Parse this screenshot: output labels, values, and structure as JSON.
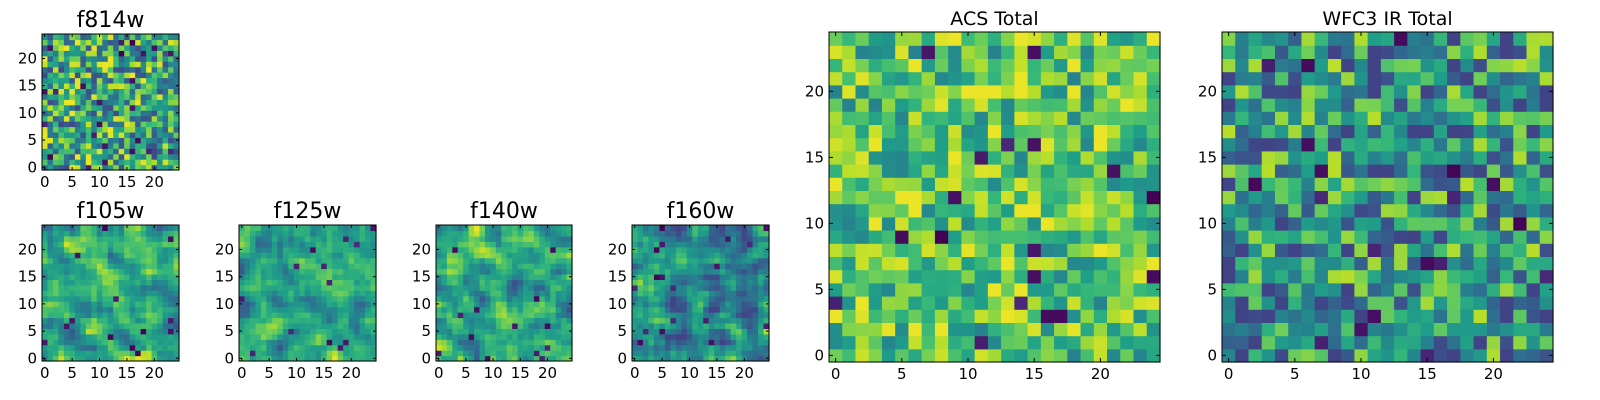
{
  "chart_data": [
    {
      "type": "heatmap",
      "title": "f814w",
      "size": 25,
      "colormap": "viridis",
      "xticks": [
        "0",
        "5",
        "10",
        "15",
        "20"
      ],
      "yticks": [
        "0",
        "5",
        "10",
        "15",
        "20"
      ],
      "values": []
    },
    {
      "type": "heatmap",
      "title": "f105w",
      "size": 25,
      "colormap": "viridis",
      "xticks": [
        "0",
        "5",
        "10",
        "15",
        "20"
      ],
      "yticks": [
        "0",
        "5",
        "10",
        "15",
        "20"
      ],
      "values": []
    },
    {
      "type": "heatmap",
      "title": "f125w",
      "size": 25,
      "colormap": "viridis",
      "xticks": [
        "0",
        "5",
        "10",
        "15",
        "20"
      ],
      "yticks": [
        "0",
        "5",
        "10",
        "15",
        "20"
      ],
      "values": []
    },
    {
      "type": "heatmap",
      "title": "f140w",
      "size": 25,
      "colormap": "viridis",
      "xticks": [
        "0",
        "5",
        "10",
        "15",
        "20"
      ],
      "yticks": [
        "0",
        "5",
        "10",
        "15",
        "20"
      ],
      "values": []
    },
    {
      "type": "heatmap",
      "title": "f160w",
      "size": 25,
      "colormap": "viridis",
      "xticks": [
        "0",
        "5",
        "10",
        "15",
        "20"
      ],
      "yticks": [
        "0",
        "5",
        "10",
        "15",
        "20"
      ],
      "values": []
    },
    {
      "type": "heatmap",
      "title": "ACS Total",
      "size": 25,
      "colormap": "viridis",
      "xticks": [
        "0",
        "5",
        "10",
        "15",
        "20"
      ],
      "yticks": [
        "0",
        "5",
        "10",
        "15",
        "20"
      ],
      "values": []
    },
    {
      "type": "heatmap",
      "title": "WFC3 IR Total",
      "size": 25,
      "colormap": "viridis",
      "xticks": [
        "0",
        "5",
        "10",
        "15",
        "20"
      ],
      "yticks": [
        "0",
        "5",
        "10",
        "15",
        "20"
      ],
      "values": []
    }
  ]
}
